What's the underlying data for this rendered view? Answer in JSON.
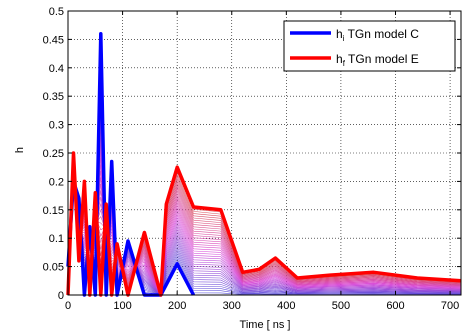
{
  "chart_data": {
    "type": "line",
    "xlabel": "Time [ ns ]",
    "ylabel": "h",
    "xlim": [
      0,
      720
    ],
    "ylim": [
      0,
      0.5
    ],
    "xticks": [
      0,
      100,
      200,
      300,
      400,
      500,
      600,
      700
    ],
    "yticks": [
      0,
      0.05,
      0.1,
      0.15,
      0.2,
      0.25,
      0.3,
      0.35,
      0.4,
      0.45,
      0.5
    ],
    "xtick_labels": [
      "0",
      "100",
      "200",
      "300",
      "400",
      "500",
      "600",
      "700"
    ],
    "ytick_labels": [
      "0",
      "0.05",
      "0.1",
      "0.15",
      "0.2",
      "0.25",
      "0.3",
      "0.35",
      "0.4",
      "0.45",
      "0.5"
    ],
    "grid": "dotted",
    "legend_position": "top-right",
    "legend": [
      {
        "main": "h",
        "sub": "i",
        "rest": " TGn model C",
        "color": "#0000ff"
      },
      {
        "main": "h",
        "sub": "f",
        "rest": " TGn model E",
        "color": "#ff0000"
      }
    ],
    "series": [
      {
        "name": "h_i TGn model C",
        "color": "#0000ff",
        "x": [
          0,
          10,
          20,
          30,
          40,
          50,
          60,
          70,
          80,
          90,
          110,
          140,
          170,
          200,
          230
        ],
        "y": [
          0.05,
          0.2,
          0.17,
          0.0,
          0.12,
          0.0,
          0.46,
          0.0,
          0.235,
          0.0,
          0.095,
          0.0,
          0.0,
          0.055,
          0.0
        ]
      },
      {
        "name": "h_f TGn model E",
        "color": "#ff0000",
        "x": [
          0,
          10,
          20,
          30,
          40,
          50,
          60,
          70,
          80,
          90,
          110,
          140,
          170,
          180,
          200,
          230,
          280,
          320,
          350,
          380,
          420,
          480,
          560,
          640,
          720
        ],
        "y": [
          0.0,
          0.25,
          0.06,
          0.2,
          0.0,
          0.18,
          0.0,
          0.16,
          0.0,
          0.09,
          0.0,
          0.11,
          0.0,
          0.16,
          0.225,
          0.155,
          0.15,
          0.04,
          0.045,
          0.065,
          0.03,
          0.035,
          0.04,
          0.03,
          0.025
        ]
      }
    ]
  }
}
